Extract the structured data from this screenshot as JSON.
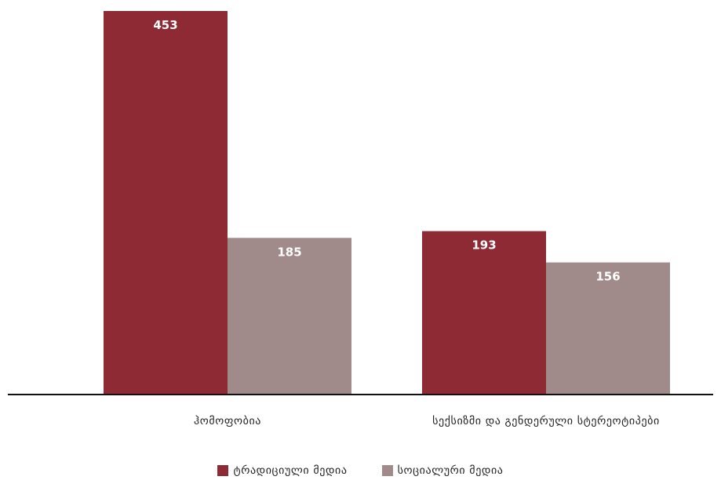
{
  "chart_data": {
    "type": "bar",
    "categories": [
      "ჰომოფობია",
      "სექსიზმი და გენდერული სტერეოტიპები"
    ],
    "series": [
      {
        "name": "ტრადიციული მედია",
        "values": [
          453,
          193
        ],
        "color": "#8e2a33"
      },
      {
        "name": "სოციალური მედია",
        "values": [
          185,
          156
        ],
        "color": "#a08b8a"
      }
    ],
    "ylim": [
      0,
      453
    ],
    "data_labels": true,
    "axis": "baseline only",
    "grid": false,
    "legend_position": "bottom-center"
  }
}
